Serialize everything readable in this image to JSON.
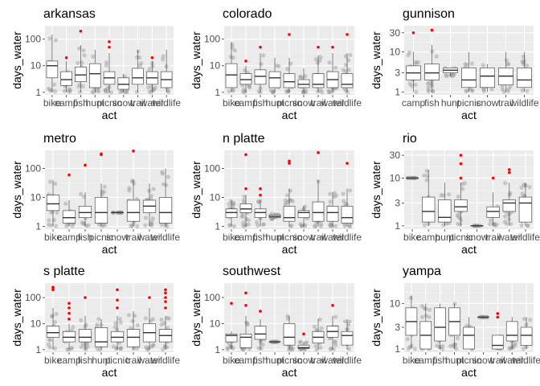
{
  "chart_data": [
    {
      "type": "box",
      "title": "arkansas",
      "xlabel": "act",
      "ylabel": "days_water",
      "y_scale": "log",
      "ylim": [
        0.8,
        320
      ],
      "y_ticks": [
        1,
        10,
        100
      ],
      "categories": [
        "bike",
        "camp",
        "fish",
        "hunt",
        "picnic",
        "snow",
        "trail",
        "water",
        "wildlife"
      ],
      "boxes": [
        {
          "q1": 3.5,
          "median": 10,
          "q3": 15,
          "low": 1,
          "high": 150,
          "outliers": []
        },
        {
          "q1": 1.8,
          "median": 3,
          "q3": 6,
          "low": 1,
          "high": 15,
          "outliers": [
            20
          ]
        },
        {
          "q1": 2.5,
          "median": 4.5,
          "q3": 9,
          "low": 1,
          "high": 60,
          "outliers": [
            200
          ]
        },
        {
          "q1": 1.5,
          "median": 5,
          "q3": 12,
          "low": 1,
          "high": 40,
          "outliers": []
        },
        {
          "q1": 2,
          "median": 3.5,
          "q3": 6,
          "low": 1,
          "high": 30,
          "outliers": [
            50,
            80
          ]
        },
        {
          "q1": 1.3,
          "median": 2,
          "q3": 3.5,
          "low": 1,
          "high": 5,
          "outliers": []
        },
        {
          "q1": 2,
          "median": 3.5,
          "q3": 8,
          "low": 1,
          "high": 40,
          "outliers": []
        },
        {
          "q1": 2,
          "median": 3.5,
          "q3": 6,
          "low": 1,
          "high": 15,
          "outliers": [
            20
          ]
        },
        {
          "q1": 1.5,
          "median": 3,
          "q3": 6,
          "low": 1,
          "high": 40,
          "outliers": []
        }
      ]
    },
    {
      "type": "box",
      "title": "colorado",
      "xlabel": "act",
      "ylabel": "days_water",
      "y_scale": "log",
      "ylim": [
        0.8,
        320
      ],
      "y_ticks": [
        1,
        10,
        100
      ],
      "categories": [
        "bike",
        "camp",
        "fish",
        "hunt",
        "picnic",
        "snow",
        "trail",
        "water",
        "wildlife"
      ],
      "boxes": [
        {
          "q1": 1.5,
          "median": 4.5,
          "q3": 12,
          "low": 1,
          "high": 80,
          "outliers": []
        },
        {
          "q1": 2,
          "median": 3,
          "q3": 5,
          "low": 1,
          "high": 10,
          "outliers": [
            15
          ]
        },
        {
          "q1": 2,
          "median": 4,
          "q3": 7,
          "low": 1,
          "high": 30,
          "outliers": [
            50
          ]
        },
        {
          "q1": 1.5,
          "median": 3.5,
          "q3": 6,
          "low": 1,
          "high": 20,
          "outliers": []
        },
        {
          "q1": 1.5,
          "median": 2.5,
          "q3": 5,
          "low": 1,
          "high": 20,
          "outliers": [
            150
          ]
        },
        {
          "q1": 1.5,
          "median": 2,
          "q3": 3,
          "low": 1,
          "high": 8,
          "outliers": []
        },
        {
          "q1": 1.5,
          "median": 2,
          "q3": 5,
          "low": 1,
          "high": 25,
          "outliers": [
            50
          ]
        },
        {
          "q1": 1.5,
          "median": 3,
          "q3": 6,
          "low": 1,
          "high": 30,
          "outliers": [
            50
          ]
        },
        {
          "q1": 1.5,
          "median": 2,
          "q3": 5,
          "low": 1,
          "high": 30,
          "outliers": [
            150
          ]
        }
      ]
    },
    {
      "type": "box",
      "title": "gunnison",
      "xlabel": "act",
      "ylabel": "days_water",
      "y_scale": "log",
      "ylim": [
        0.85,
        45
      ],
      "y_ticks": [
        1,
        3,
        10,
        30
      ],
      "categories": [
        "camp",
        "fish",
        "hunt",
        "picnic",
        "snow",
        "trail",
        "wildlife"
      ],
      "boxes": [
        {
          "q1": 2,
          "median": 3,
          "q3": 4.5,
          "low": 1,
          "high": 10,
          "outliers": [
            30
          ]
        },
        {
          "q1": 2,
          "median": 3,
          "q3": 5,
          "low": 1,
          "high": 15,
          "outliers": [
            35
          ]
        },
        {
          "q1": 3,
          "median": 3.5,
          "q3": 4,
          "low": 2.5,
          "high": 4,
          "outliers": []
        },
        {
          "q1": 1.3,
          "median": 2,
          "q3": 4,
          "low": 1,
          "high": 10,
          "outliers": []
        },
        {
          "q1": 1.3,
          "median": 2.5,
          "q3": 4,
          "low": 1,
          "high": 5,
          "outliers": []
        },
        {
          "q1": 1.5,
          "median": 2.5,
          "q3": 4,
          "low": 1,
          "high": 10,
          "outliers": []
        },
        {
          "q1": 1.3,
          "median": 2,
          "q3": 4,
          "low": 1,
          "high": 10,
          "outliers": []
        }
      ]
    },
    {
      "type": "box",
      "title": "metro",
      "xlabel": "act",
      "ylabel": "days_water",
      "y_scale": "log",
      "ylim": [
        0.8,
        420
      ],
      "y_ticks": [
        1,
        10,
        100
      ],
      "categories": [
        "bike",
        "camp",
        "fish",
        "picnic",
        "snow",
        "trail",
        "water",
        "wildlife"
      ],
      "boxes": [
        {
          "q1": 3.5,
          "median": 6,
          "q3": 12,
          "low": 1,
          "high": 40,
          "outliers": []
        },
        {
          "q1": 1.3,
          "median": 2,
          "q3": 3.5,
          "low": 1,
          "high": 8,
          "outliers": [
            60
          ]
        },
        {
          "q1": 2,
          "median": 3,
          "q3": 5,
          "low": 1,
          "high": 15,
          "outliers": [
            130
          ]
        },
        {
          "q1": 1.3,
          "median": 3,
          "q3": 10,
          "low": 1,
          "high": 30,
          "outliers": [
            300,
            320
          ]
        },
        {
          "q1": 3,
          "median": 3,
          "q3": 3,
          "low": 3,
          "high": 3,
          "outliers": []
        },
        {
          "q1": 1.5,
          "median": 3,
          "q3": 8,
          "low": 1,
          "high": 40,
          "outliers": [
            400
          ]
        },
        {
          "q1": 3,
          "median": 5,
          "q3": 8,
          "low": 1,
          "high": 30,
          "outliers": []
        },
        {
          "q1": 1.3,
          "median": 3,
          "q3": 10,
          "low": 1,
          "high": 100,
          "outliers": []
        }
      ]
    },
    {
      "type": "box",
      "title": "n platte",
      "xlabel": "act",
      "ylabel": "days_water",
      "y_scale": "log",
      "ylim": [
        0.8,
        420
      ],
      "y_ticks": [
        1,
        10,
        100
      ],
      "categories": [
        "bike",
        "camp",
        "fish",
        "hunt",
        "picnic",
        "snow",
        "trail",
        "water",
        "wildlife"
      ],
      "boxes": [
        {
          "q1": 2,
          "median": 3,
          "q3": 4,
          "low": 1,
          "high": 8,
          "outliers": []
        },
        {
          "q1": 3,
          "median": 4,
          "q3": 6,
          "low": 1,
          "high": 12,
          "outliers": [
            20,
            300
          ]
        },
        {
          "q1": 2,
          "median": 3,
          "q3": 4,
          "low": 1,
          "high": 8,
          "outliers": [
            12,
            20
          ]
        },
        {
          "q1": 2,
          "median": 2.2,
          "q3": 2.5,
          "low": 1.8,
          "high": 3,
          "outliers": []
        },
        {
          "q1": 1.5,
          "median": 2,
          "q3": 5,
          "low": 1,
          "high": 20,
          "outliers": [
            150,
            180
          ]
        },
        {
          "q1": 2,
          "median": 3,
          "q3": 3.5,
          "low": 1,
          "high": 5,
          "outliers": []
        },
        {
          "q1": 1.5,
          "median": 3,
          "q3": 7,
          "low": 1,
          "high": 40,
          "outliers": [
            350
          ]
        },
        {
          "q1": 1.5,
          "median": 3,
          "q3": 5,
          "low": 1,
          "high": 15,
          "outliers": []
        },
        {
          "q1": 1.3,
          "median": 2,
          "q3": 5,
          "low": 1,
          "high": 20,
          "outliers": [
            150
          ]
        }
      ]
    },
    {
      "type": "box",
      "title": "rio",
      "xlabel": "act",
      "ylabel": "days_water",
      "y_scale": "log",
      "ylim": [
        0.85,
        38
      ],
      "y_ticks": [
        1,
        3,
        10,
        30
      ],
      "categories": [
        "bike",
        "camp",
        "hunt",
        "picnic",
        "snow",
        "trail",
        "water",
        "wildlife"
      ],
      "boxes": [
        {
          "q1": 10,
          "median": 10,
          "q3": 10,
          "low": 10,
          "high": 10,
          "outliers": []
        },
        {
          "q1": 1.2,
          "median": 2,
          "q3": 4,
          "low": 1,
          "high": 15,
          "outliers": []
        },
        {
          "q1": 1.2,
          "median": 1.5,
          "q3": 3.5,
          "low": 1,
          "high": 8,
          "outliers": []
        },
        {
          "q1": 2,
          "median": 2.5,
          "q3": 3.5,
          "low": 1,
          "high": 8,
          "outliers": [
            10,
            20,
            30
          ]
        },
        {
          "q1": 1,
          "median": 1,
          "q3": 1,
          "low": 1,
          "high": 1,
          "outliers": []
        },
        {
          "q1": 1.5,
          "median": 2,
          "q3": 2.5,
          "low": 1,
          "high": 5,
          "outliers": [
            10
          ]
        },
        {
          "q1": 2,
          "median": 3,
          "q3": 3.5,
          "low": 1,
          "high": 8,
          "outliers": [
            13,
            15
          ]
        },
        {
          "q1": 1.2,
          "median": 3,
          "q3": 4,
          "low": 1,
          "high": 8,
          "outliers": []
        }
      ]
    },
    {
      "type": "box",
      "title": "s platte",
      "xlabel": "act",
      "ylabel": "days_water",
      "y_scale": "log",
      "ylim": [
        0.8,
        360
      ],
      "y_ticks": [
        1,
        10,
        100
      ],
      "categories": [
        "bike",
        "camp",
        "fish",
        "hunt",
        "picnic",
        "trail",
        "water",
        "wildlife"
      ],
      "boxes": [
        {
          "q1": 3,
          "median": 4.5,
          "q3": 8,
          "low": 1,
          "high": 40,
          "outliers": [
            200,
            230,
            250
          ]
        },
        {
          "q1": 2,
          "median": 3,
          "q3": 5,
          "low": 1,
          "high": 10,
          "outliers": [
            15,
            25,
            40,
            60
          ]
        },
        {
          "q1": 2,
          "median": 3,
          "q3": 6,
          "low": 1,
          "high": 20,
          "outliers": [
            100
          ]
        },
        {
          "q1": 1.3,
          "median": 2,
          "q3": 7,
          "low": 1,
          "high": 15,
          "outliers": []
        },
        {
          "q1": 2,
          "median": 3,
          "q3": 5,
          "low": 1,
          "high": 20,
          "outliers": [
            40,
            80,
            200
          ]
        },
        {
          "q1": 1.3,
          "median": 3,
          "q3": 6,
          "low": 1,
          "high": 30,
          "outliers": []
        },
        {
          "q1": 2,
          "median": 4.5,
          "q3": 10,
          "low": 1,
          "high": 40,
          "outliers": [
            100
          ]
        },
        {
          "q1": 2,
          "median": 3.5,
          "q3": 6,
          "low": 1,
          "high": 20,
          "outliers": [
            40,
            70,
            100,
            150,
            200
          ]
        }
      ]
    },
    {
      "type": "box",
      "title": "southwest",
      "xlabel": "act",
      "ylabel": "days_water",
      "y_scale": "log",
      "ylim": [
        0.8,
        360
      ],
      "y_ticks": [
        1,
        10,
        100
      ],
      "categories": [
        "bike",
        "camp",
        "fish",
        "hunt",
        "picnic",
        "snow",
        "trail",
        "water",
        "wildlife"
      ],
      "boxes": [
        {
          "q1": 2,
          "median": 3.5,
          "q3": 4,
          "low": 1,
          "high": 5,
          "outliers": [
            60
          ]
        },
        {
          "q1": 1.2,
          "median": 3,
          "q3": 4,
          "low": 1,
          "high": 20,
          "outliers": [
            50,
            150
          ]
        },
        {
          "q1": 2.5,
          "median": 4,
          "q3": 8,
          "low": 1,
          "high": 15,
          "outliers": [
            30
          ]
        },
        {
          "q1": 2,
          "median": 2,
          "q3": 2,
          "low": 2,
          "high": 2,
          "outliers": []
        },
        {
          "q1": 1.5,
          "median": 3,
          "q3": 10,
          "low": 1,
          "high": 20,
          "outliers": []
        },
        {
          "q1": 1.1,
          "median": 1.2,
          "q3": 1.5,
          "low": 1,
          "high": 2,
          "outliers": [
            4
          ]
        },
        {
          "q1": 1.8,
          "median": 3,
          "q3": 5,
          "low": 1,
          "high": 15,
          "outliers": []
        },
        {
          "q1": 3,
          "median": 5,
          "q3": 8,
          "low": 1,
          "high": 20,
          "outliers": [
            50
          ]
        },
        {
          "q1": 1.5,
          "median": 3.5,
          "q3": 5,
          "low": 1,
          "high": 15,
          "outliers": []
        }
      ]
    },
    {
      "type": "box",
      "title": "yampa",
      "xlabel": "act",
      "ylabel": "days_water",
      "y_scale": "log",
      "ylim": [
        0.85,
        28
      ],
      "y_ticks": [
        1,
        3,
        10
      ],
      "categories": [
        "bike",
        "camp",
        "fish",
        "hunt",
        "picnic",
        "snow",
        "trail",
        "water",
        "wildlife"
      ],
      "boxes": [
        {
          "q1": 2,
          "median": 4,
          "q3": 8,
          "low": 1,
          "high": 15,
          "outliers": []
        },
        {
          "q1": 1,
          "median": 2,
          "q3": 4,
          "low": 1,
          "high": 10,
          "outliers": []
        },
        {
          "q1": 1.5,
          "median": 3,
          "q3": 8,
          "low": 1,
          "high": 10,
          "outliers": []
        },
        {
          "q1": 2,
          "median": 4,
          "q3": 8,
          "low": 1,
          "high": 10,
          "outliers": []
        },
        {
          "q1": 1,
          "median": 2,
          "q3": 3,
          "low": 1,
          "high": 5,
          "outliers": []
        },
        {
          "q1": 5,
          "median": 5,
          "q3": 5,
          "low": 5,
          "high": 5,
          "outliers": []
        },
        {
          "q1": 1,
          "median": 1.2,
          "q3": 2,
          "low": 1,
          "high": 2,
          "outliers": [
            5,
            6
          ]
        },
        {
          "q1": 1.5,
          "median": 2,
          "q3": 4,
          "low": 1,
          "high": 5,
          "outliers": []
        },
        {
          "q1": 1.2,
          "median": 2,
          "q3": 3,
          "low": 1,
          "high": 5,
          "outliers": []
        }
      ]
    }
  ],
  "colors": {
    "panel_bg": "#ebebeb",
    "grid_major": "#ffffff",
    "grid_minor": "#f5f5f5",
    "outlier": "#ff0000",
    "jitter": "#999999",
    "box_fill": "#ffffff",
    "box_line": "#333333",
    "axis_text": "#4d4d4d"
  }
}
